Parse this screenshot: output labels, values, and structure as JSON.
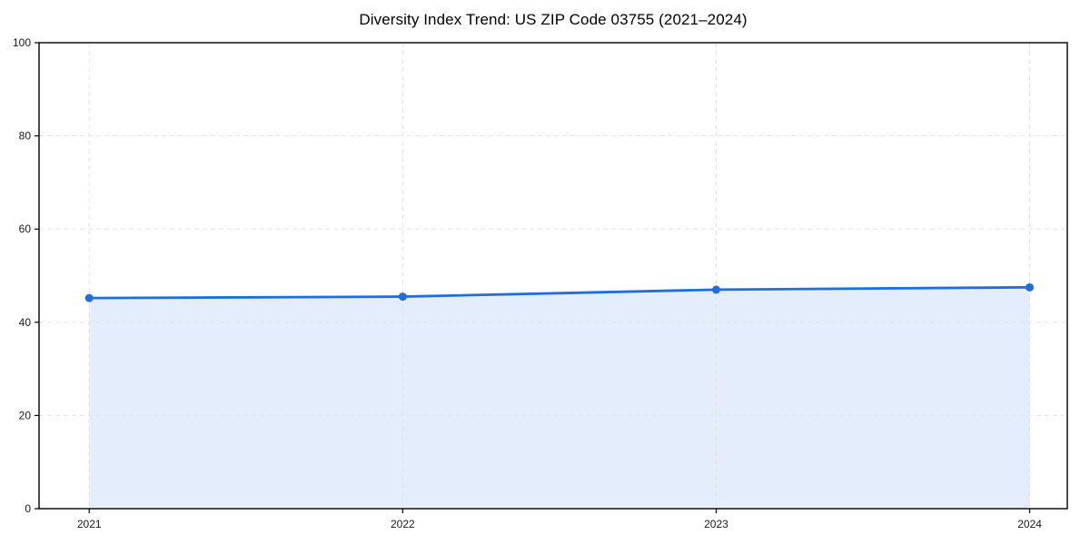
{
  "page": {
    "background": "#ffffff"
  },
  "chart_data": {
    "type": "area",
    "title": "Diversity Index Trend: US ZIP Code 03755 (2021–2024)",
    "x": [
      2021,
      2022,
      2023,
      2024
    ],
    "x_tick_labels": [
      "2021",
      "2022",
      "2023",
      "2024"
    ],
    "series": [
      {
        "name": "Diversity Index",
        "values": [
          45.2,
          45.5,
          47.0,
          47.5
        ]
      }
    ],
    "xlabel": "",
    "ylabel": "",
    "xlim": [
      2020.84,
      2024.12
    ],
    "ylim": [
      0,
      100
    ],
    "yticks": [
      0,
      20,
      40,
      60,
      80,
      100
    ],
    "ytick_labels": [
      "0",
      "20",
      "40",
      "60",
      "80",
      "100"
    ],
    "grid": true,
    "grid_style": "dashed",
    "legend": "none",
    "marker": "circle",
    "colors": {
      "line": "#1e6ee1",
      "marker": "#1e6ee1",
      "fill": "rgba(30,110,225,0.12)",
      "grid": "#e3e3e3",
      "spine": "#000000",
      "tick": "#000000",
      "tick_label": "#1a1a1a",
      "title": "#000000"
    }
  }
}
